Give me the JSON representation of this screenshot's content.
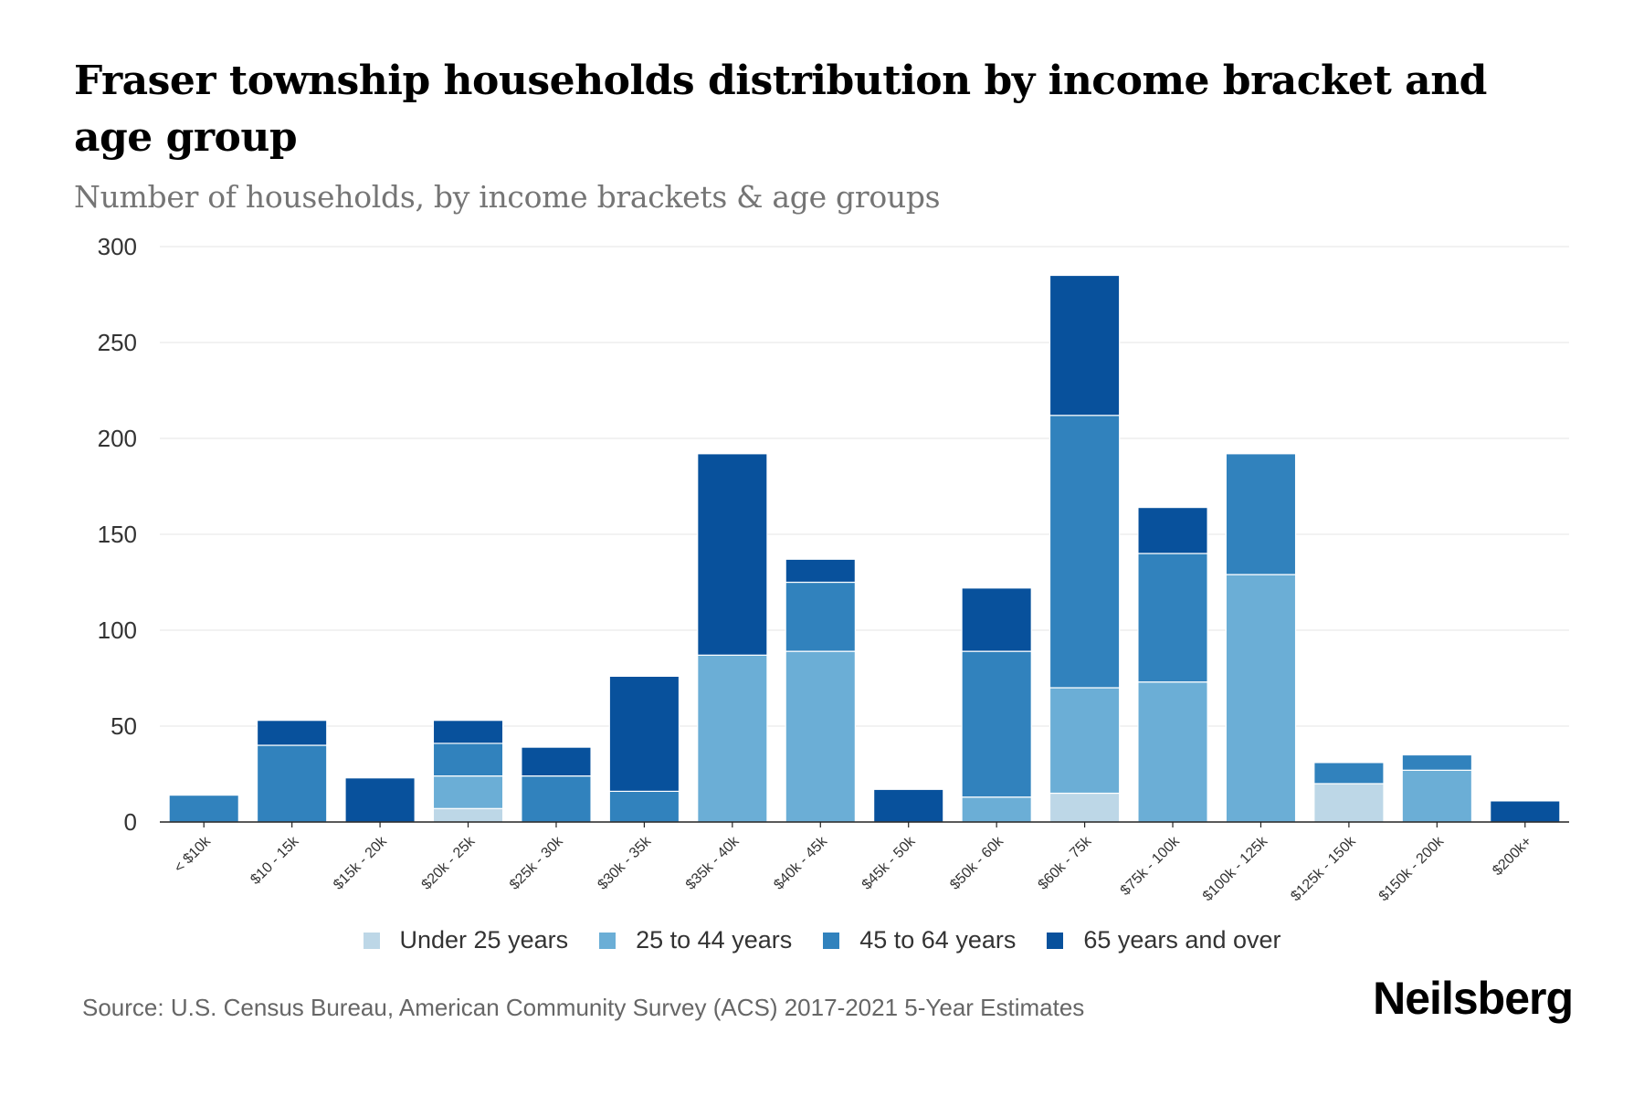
{
  "header": {
    "title": "Fraser township households distribution by income bracket and age group",
    "subtitle": "Number of households, by income brackets & age groups"
  },
  "footer": {
    "source": "Source: U.S. Census Bureau, American Community Survey (ACS) 2017-2021 5-Year Estimates",
    "brand": "Neilsberg"
  },
  "chart_data": {
    "type": "bar",
    "stacked": true,
    "title": "Fraser township households distribution by income bracket and age group",
    "subtitle": "Number of households, by income brackets & age groups",
    "xlabel": "",
    "ylabel": "",
    "ylim": [
      0,
      300
    ],
    "yticks": [
      0,
      50,
      100,
      150,
      200,
      250,
      300
    ],
    "grid": true,
    "legend_position": "bottom",
    "categories": [
      "< $10k",
      "$10 - 15k",
      "$15k - 20k",
      "$20k - 25k",
      "$25k - 30k",
      "$30k - 35k",
      "$35k - 40k",
      "$40k - 45k",
      "$45k - 50k",
      "$50k - 60k",
      "$60k - 75k",
      "$75k - 100k",
      "$100k - 125k",
      "$125k - 150k",
      "$150k - 200k",
      "$200k+"
    ],
    "series": [
      {
        "name": "Under 25 years",
        "color": "#bdd7e7",
        "values": [
          0,
          0,
          0,
          7,
          0,
          0,
          0,
          0,
          0,
          0,
          15,
          0,
          0,
          20,
          0,
          0
        ]
      },
      {
        "name": "25 to 44 years",
        "color": "#6baed6",
        "values": [
          0,
          0,
          0,
          17,
          0,
          0,
          87,
          89,
          0,
          13,
          55,
          73,
          129,
          0,
          27,
          0
        ]
      },
      {
        "name": "45 to 64 years",
        "color": "#3182bd",
        "values": [
          14,
          40,
          0,
          17,
          24,
          16,
          0,
          36,
          0,
          76,
          142,
          67,
          63,
          11,
          8,
          0
        ]
      },
      {
        "name": "65 years and over",
        "color": "#08519c",
        "values": [
          0,
          13,
          23,
          12,
          15,
          60,
          105,
          12,
          17,
          33,
          73,
          24,
          0,
          0,
          0,
          11
        ]
      }
    ]
  }
}
